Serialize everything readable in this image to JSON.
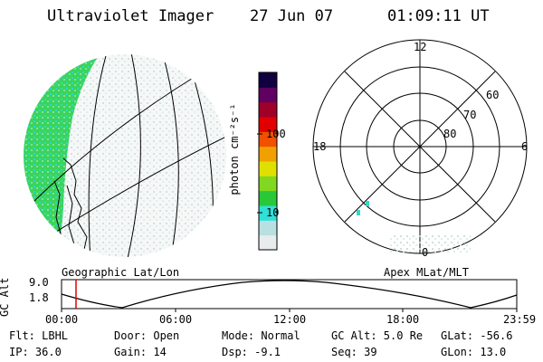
{
  "header": {
    "instrument": "Ultraviolet Imager",
    "date": "27 Jun 07",
    "time": "01:09:11 UT"
  },
  "colorbar": {
    "unit_label": "photon cm⁻²s⁻¹",
    "ticks": [
      "100",
      "10"
    ],
    "scale": "log",
    "colors": [
      "#e8ecec",
      "#b8e0e0",
      "#30e0d8",
      "#28c838",
      "#80d820",
      "#e0e000",
      "#f0a000",
      "#f05000",
      "#e00000",
      "#a00028",
      "#600060",
      "#100040"
    ]
  },
  "geo_map": {
    "title": "Geographic Lat/Lon"
  },
  "polar_plot": {
    "title": "Apex MLat/MLT",
    "mlt_labels": [
      "12",
      "18",
      "6",
      "0"
    ],
    "lat_labels": [
      "60",
      "70",
      "80"
    ]
  },
  "altitude_strip": {
    "ylabel": "GC Alt",
    "y_ticks": [
      "9.0",
      "1.8"
    ],
    "x_ticks": [
      "00:00",
      "06:00",
      "12:00",
      "18:00",
      "23:59"
    ],
    "marker_color": "#e00000"
  },
  "info": {
    "flt": "Flt: LBHL",
    "ip": "IP: 36.0",
    "door": "Door: Open",
    "gain": "Gain: 14",
    "mode": "Mode: Normal",
    "dsp": "Dsp:    -9.1",
    "gc_alt": "GC Alt: 5.0 Re",
    "seq": "Seq: 39",
    "glat": "GLat:  -56.6",
    "glon": "GLon:  13.0"
  }
}
